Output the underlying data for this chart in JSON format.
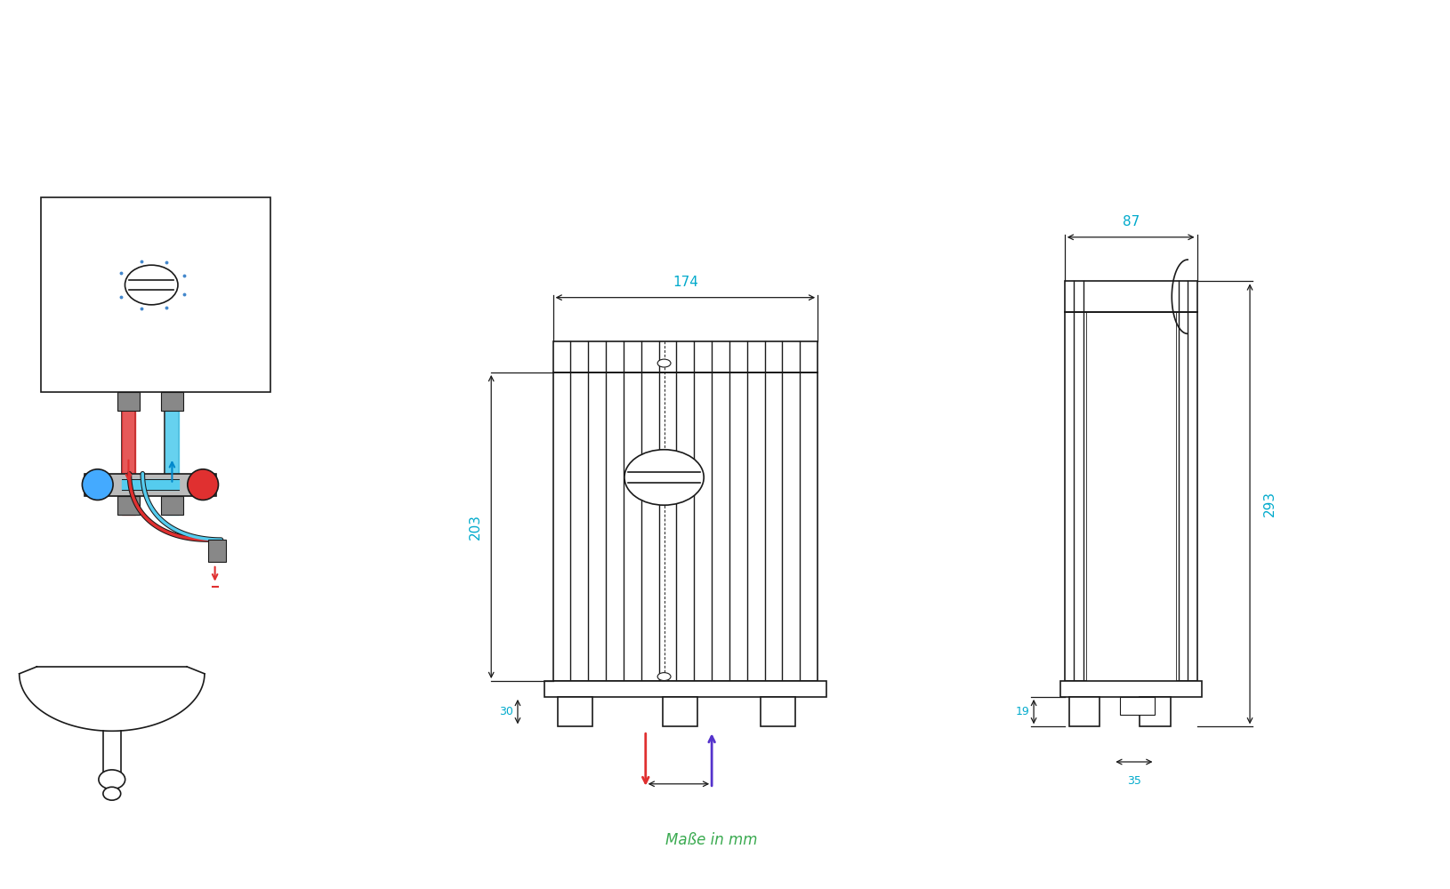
{
  "bg_color": "#ffffff",
  "line_color": "#1a1a1a",
  "dim_color": "#00aacc",
  "red_color": "#e03030",
  "blue_color": "#5533cc",
  "cyan_color": "#44aadd",
  "dim_174": "174",
  "dim_87": "87",
  "dim_203": "203",
  "dim_293": "293",
  "dim_30": "30",
  "dim_19": "19",
  "dim_35": "35",
  "label_mass": "Maße in mm",
  "fig_width": 16.3,
  "fig_height": 10.0
}
